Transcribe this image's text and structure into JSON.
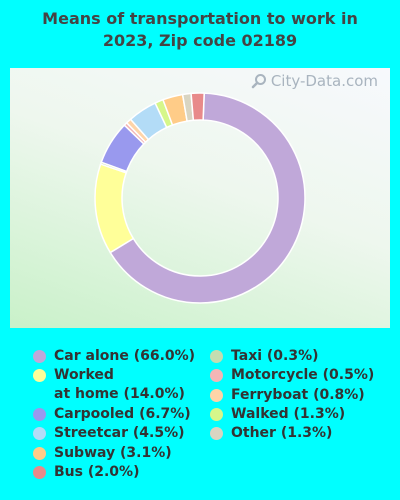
{
  "chart_data": {
    "type": "pie",
    "variant": "donut",
    "title": "Means of transportation to work in 2023, Zip code 02189",
    "title_lines": [
      "Means of transportation to work in",
      "2023, Zip code 02189"
    ],
    "watermark": "City-Data.com",
    "unit": "%",
    "slices": [
      {
        "label": "Car alone (66.0%)",
        "legend_label": "Car alone (66.0%)",
        "value": 66.0,
        "color": "#c0a8d9"
      },
      {
        "label": "Worked at home (14.0%)",
        "legend_label": "Worked\nat home (14.0%)",
        "value": 14.0,
        "color": "#ffff99"
      },
      {
        "label": "Taxi (0.3%)",
        "legend_label": "Taxi (0.3%)",
        "value": 0.3,
        "color": "#c4ddb0"
      },
      {
        "label": "Carpooled (6.7%)",
        "legend_label": "Carpooled (6.7%)",
        "value": 6.7,
        "color": "#9999ee"
      },
      {
        "label": "Motorcycle (0.5%)",
        "legend_label": "Motorcycle (0.5%)",
        "value": 0.5,
        "color": "#f4b6b6"
      },
      {
        "label": "Ferryboat (0.8%)",
        "legend_label": "Ferryboat (0.8%)",
        "value": 0.8,
        "color": "#ffd4a8"
      },
      {
        "label": "Streetcar (4.5%)",
        "legend_label": "Streetcar (4.5%)",
        "value": 4.5,
        "color": "#b3dcf7"
      },
      {
        "label": "Walked (1.3%)",
        "legend_label": "Walked (1.3%)",
        "value": 1.3,
        "color": "#d6f78a"
      },
      {
        "label": "Subway (3.1%)",
        "legend_label": "Subway (3.1%)",
        "value": 3.1,
        "color": "#ffcc88"
      },
      {
        "label": "Other (1.3%)",
        "legend_label": "Other (1.3%)",
        "value": 1.3,
        "color": "#d9d5c2"
      },
      {
        "label": "Bus (2.0%)",
        "legend_label": "Bus (2.0%)",
        "value": 2.0,
        "color": "#e88a8a"
      }
    ],
    "legend": {
      "columns": [
        [
          "Car alone (66.0%)",
          "Worked at home (14.0%)",
          "Carpooled (6.7%)",
          "Streetcar (4.5%)",
          "Subway (3.1%)",
          "Bus (2.0%)"
        ],
        [
          "Taxi (0.3%)",
          "Motorcycle (0.5%)",
          "Ferryboat (0.8%)",
          "Walked (1.3%)",
          "Other (1.3%)"
        ]
      ]
    }
  },
  "colors": {
    "page_background": "#00ffff",
    "title": "#444444",
    "legend_text": "#333333"
  }
}
